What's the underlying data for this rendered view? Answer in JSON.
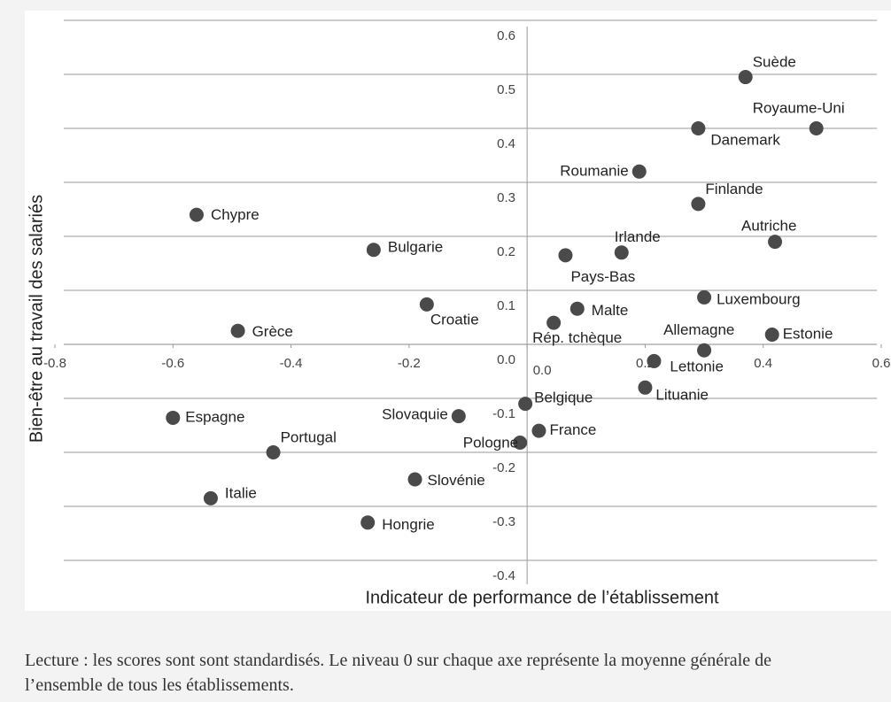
{
  "chart_data": {
    "type": "scatter",
    "xlabel": "Indicateur de performance de l’établissement",
    "ylabel": "Bien-être au travail des salariés",
    "xlim": [
      -0.8,
      0.6
    ],
    "ylim": [
      -0.4,
      0.6
    ],
    "xticks": [
      -0.8,
      -0.6,
      -0.4,
      -0.2,
      {
        "value": 0,
        "label": "0.0"
      },
      0.2,
      0.4,
      0.6
    ],
    "yticks": [
      -0.4,
      -0.3,
      -0.2,
      -0.1,
      {
        "value": 0,
        "label": "0.0"
      },
      0.1,
      0.2,
      0.3,
      0.4,
      0.5,
      0.6
    ],
    "grid": true,
    "color": "#4a4a4a",
    "labels": [
      "Suède",
      "Royaume-Uni",
      "Danemark",
      "Roumanie",
      "Finlande",
      "Chypre",
      "Autriche",
      "Bulgarie",
      "Irlande",
      "Pays-Bas",
      "Luxembourg",
      "Croatie",
      "Malte",
      "Rép. tchèque",
      "Grèce",
      "Estonie",
      "Allemagne",
      "Lettonie",
      "Lituanie",
      "Belgique",
      "Espagne",
      "Slovaquie",
      "France",
      "Pologne",
      "Portugal",
      "Slovénie",
      "Italie",
      "Hongrie"
    ],
    "x": [
      0.37,
      0.49,
      0.29,
      0.19,
      0.29,
      -0.56,
      0.42,
      -0.26,
      0.16,
      0.065,
      0.3,
      -0.17,
      0.085,
      0.045,
      -0.49,
      0.415,
      0.3,
      0.215,
      0.2,
      -0.003,
      -0.6,
      -0.116,
      0.02,
      -0.012,
      -0.43,
      -0.19,
      -0.536,
      -0.27
    ],
    "y": [
      0.495,
      0.4,
      0.4,
      0.32,
      0.26,
      0.24,
      0.19,
      0.175,
      0.17,
      0.165,
      0.087,
      0.074,
      0.066,
      0.04,
      0.025,
      0.018,
      -0.011,
      -0.031,
      -0.08,
      -0.11,
      -0.136,
      -0.133,
      -0.16,
      -0.182,
      -0.2,
      -0.25,
      -0.285,
      -0.33
    ]
  },
  "caption": "Lecture : les scores sont sont standardisés. Le niveau 0 sur chaque axe représente la moyenne générale de l’ensemble de tous les établissements."
}
